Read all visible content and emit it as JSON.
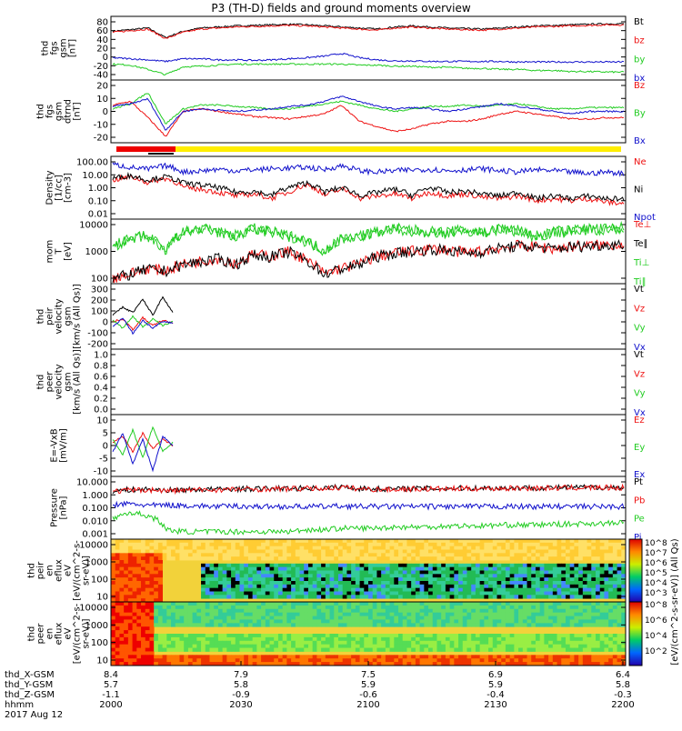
{
  "title": "P3 (TH-D) fields and ground moments overview",
  "colors": {
    "black": "#000000",
    "red": "#ee1111",
    "green": "#22cc22",
    "blue": "#1111cc",
    "yellow": "#ffee00",
    "bar_red": "#ee0000",
    "spec_bg": "#f2d23a"
  },
  "chart_data": [
    {
      "id": "fgs_gsm",
      "type": "line",
      "ylabel": [
        "thd",
        "fgs",
        "gsm",
        "[nT]"
      ],
      "yticks": [
        "80",
        "60",
        "40",
        "20",
        "0",
        "-20",
        "-40"
      ],
      "ylim": [
        -40,
        80
      ],
      "series": [
        {
          "name": "Bt",
          "color": "black",
          "values": [
            52,
            55,
            58,
            40,
            52,
            58,
            60,
            62,
            63,
            64,
            65,
            64,
            62,
            60,
            58,
            56,
            60,
            62,
            60,
            58,
            57,
            56,
            58,
            60,
            62,
            63,
            64,
            65,
            66,
            66
          ]
        },
        {
          "name": "bz",
          "color": "red",
          "values": [
            50,
            53,
            56,
            38,
            50,
            56,
            58,
            60,
            61,
            62,
            63,
            62,
            60,
            58,
            56,
            54,
            58,
            60,
            58,
            56,
            55,
            54,
            56,
            58,
            60,
            61,
            62,
            63,
            64,
            64
          ]
        },
        {
          "name": "by",
          "color": "green",
          "values": [
            -10,
            -12,
            -20,
            -30,
            -15,
            -14,
            -12,
            -10,
            -10,
            -10,
            -10,
            -10,
            -10,
            -10,
            -12,
            -12,
            -14,
            -14,
            -16,
            -16,
            -18,
            -18,
            -20,
            -20,
            -22,
            -22,
            -24,
            -24,
            -25,
            -25
          ]
        },
        {
          "name": "bx",
          "color": "blue",
          "values": [
            2,
            0,
            -2,
            -5,
            0,
            0,
            -2,
            -2,
            -3,
            -2,
            0,
            2,
            5,
            10,
            2,
            -2,
            -4,
            -4,
            -5,
            -5,
            -5,
            -5,
            -5,
            -6,
            -6,
            -6,
            -6,
            -6,
            -6,
            -6
          ]
        }
      ]
    },
    {
      "id": "fgs_gse_detrend",
      "type": "line",
      "ylabel": [
        "thd",
        "fgs",
        "gsm",
        "dtrnd",
        "[nT]"
      ],
      "yticks": [
        "20",
        "10",
        "0",
        "-10",
        "-20"
      ],
      "ylim": [
        -25,
        25
      ],
      "series": [
        {
          "name": "Bz",
          "color": "red",
          "values": [
            5,
            8,
            -5,
            -20,
            0,
            2,
            0,
            -2,
            -4,
            -5,
            -6,
            -4,
            -2,
            5,
            -8,
            -12,
            -16,
            -14,
            -10,
            -8,
            -8,
            -6,
            -2,
            0,
            -2,
            -4,
            -6,
            -6,
            -5,
            -5
          ]
        },
        {
          "name": "By",
          "color": "green",
          "values": [
            2,
            6,
            15,
            -10,
            2,
            5,
            5,
            4,
            3,
            2,
            2,
            4,
            6,
            8,
            5,
            2,
            0,
            2,
            4,
            4,
            5,
            4,
            5,
            6,
            4,
            2,
            2,
            3,
            3,
            3
          ]
        },
        {
          "name": "Bx",
          "color": "blue",
          "values": [
            4,
            6,
            10,
            -15,
            0,
            2,
            1,
            0,
            1,
            2,
            4,
            5,
            8,
            12,
            8,
            4,
            2,
            3,
            2,
            0,
            2,
            4,
            6,
            4,
            2,
            0,
            -2,
            0,
            0,
            0
          ]
        }
      ]
    },
    {
      "id": "density",
      "type": "line",
      "log": true,
      "ylabel": [
        "Density",
        "[1/cc]",
        "[cm-3]"
      ],
      "yticks": [
        "100.00",
        "10.00",
        "1.00",
        "0.10",
        "0.01"
      ],
      "ylim": [
        0.01,
        100
      ],
      "series": [
        {
          "name": "Ne",
          "color": "red",
          "values": [
            3,
            5,
            2,
            4,
            1,
            0.8,
            0.5,
            0.3,
            0.4,
            0.2,
            0.5,
            1.5,
            0.3,
            0.8,
            0.2,
            0.3,
            0.4,
            0.2,
            0.5,
            0.3,
            0.4,
            0.25,
            0.2,
            0.3,
            0.15,
            0.2,
            0.15,
            0.2,
            0.12,
            0.1
          ]
        },
        {
          "name": "Ni",
          "color": "black",
          "values": [
            4,
            6,
            3,
            5,
            2,
            1.5,
            1,
            0.5,
            0.6,
            0.3,
            1,
            2,
            0.5,
            1,
            0.3,
            0.5,
            0.8,
            0.3,
            1,
            0.5,
            0.6,
            0.4,
            0.3,
            0.5,
            0.2,
            0.3,
            0.2,
            0.3,
            0.2,
            0.2
          ]
        },
        {
          "name": "Npot",
          "color": "blue",
          "values": [
            30,
            20,
            15,
            25,
            10,
            12,
            15,
            12,
            14,
            16,
            18,
            20,
            14,
            25,
            12,
            10,
            12,
            14,
            15,
            12,
            14,
            16,
            12,
            10,
            14,
            12,
            10,
            8,
            10,
            8
          ]
        }
      ]
    },
    {
      "id": "moms_temp",
      "type": "line",
      "log": true,
      "ylabel": [
        "mom",
        "T",
        "[eV]"
      ],
      "yticks": [
        "10000",
        "1000",
        "100"
      ],
      "ylim": [
        100,
        10000
      ],
      "series": [
        {
          "name": "Te⊥",
          "color": "red",
          "values": [
            150,
            200,
            300,
            250,
            400,
            500,
            600,
            400,
            800,
            700,
            1000,
            500,
            200,
            300,
            400,
            700,
            900,
            1000,
            1200,
            1100,
            900,
            1000,
            1300,
            1500,
            1400,
            1200,
            1400,
            1500,
            1600,
            1700
          ]
        },
        {
          "name": "Te∥",
          "color": "black",
          "values": [
            140,
            190,
            280,
            240,
            380,
            480,
            580,
            380,
            760,
            680,
            950,
            480,
            190,
            290,
            380,
            680,
            880,
            980,
            1150,
            1080,
            880,
            980,
            1250,
            1450,
            1380,
            1180,
            1380,
            1480,
            1580,
            1680
          ]
        },
        {
          "name": "Ti⊥",
          "color": "green",
          "values": [
            1500,
            2500,
            3000,
            1000,
            4000,
            5000,
            4000,
            3000,
            5000,
            4000,
            3000,
            2000,
            1000,
            2500,
            3000,
            4000,
            5000,
            4500,
            4000,
            4000,
            4500,
            4000,
            5000,
            4500,
            3000,
            4000,
            4500,
            5000,
            5000,
            5500
          ]
        },
        {
          "name": "Ti∥",
          "color": "green",
          "values": [
            1400,
            2300,
            2800,
            900,
            3800,
            4800,
            3800,
            2800,
            4800,
            3800,
            2800,
            1900,
            900,
            2300,
            2800,
            3800,
            4800,
            4300,
            3800,
            3800,
            4300,
            3800,
            4800,
            4300,
            2800,
            3800,
            4300,
            4800,
            4800,
            5300
          ]
        }
      ]
    },
    {
      "id": "peir_velocity",
      "type": "line",
      "ylabel": [
        "thd",
        "peir",
        "velocity",
        "gsm",
        "[km/s (All Qs)]"
      ],
      "yticks": [
        "300",
        "200",
        "100",
        "0",
        "-100",
        "-200"
      ],
      "ylim": [
        -200,
        300
      ],
      "series": [
        {
          "name": "Vt",
          "color": "black",
          "values": [
            60,
            120,
            80,
            180,
            60,
            200,
            80
          ]
        },
        {
          "name": "Vz",
          "color": "red",
          "values": [
            10,
            30,
            -50,
            40,
            -20,
            20,
            0
          ]
        },
        {
          "name": "Vy",
          "color": "green",
          "values": [
            20,
            -40,
            50,
            -30,
            30,
            -20,
            10
          ]
        },
        {
          "name": "Vx",
          "color": "blue",
          "values": [
            -30,
            40,
            -80,
            20,
            -40,
            10,
            0
          ]
        }
      ]
    },
    {
      "id": "peer_velocity",
      "type": "line",
      "ylabel": [
        "thd",
        "peer",
        "velocity",
        "gsm",
        "[km/s (All Qs)]"
      ],
      "yticks": [
        "1.0",
        "0.8",
        "0.6",
        "0.4",
        "0.2",
        "0.0"
      ],
      "ylim": [
        0,
        1
      ],
      "series": [
        {
          "name": "Vt",
          "color": "black",
          "values": []
        },
        {
          "name": "Vz",
          "color": "red",
          "values": []
        },
        {
          "name": "Vy",
          "color": "green",
          "values": []
        },
        {
          "name": "Vx",
          "color": "blue",
          "values": []
        }
      ]
    },
    {
      "id": "efield",
      "type": "line",
      "ylabel": [
        "E=-VxB",
        "[mV/m]"
      ],
      "yticks": [
        "10",
        "5",
        "0",
        "-5",
        "-10"
      ],
      "ylim": [
        -10,
        10
      ],
      "series": [
        {
          "name": "Ez",
          "color": "red",
          "values": [
            1,
            3,
            -2,
            4,
            -1,
            2,
            0
          ]
        },
        {
          "name": "Ey",
          "color": "green",
          "values": [
            2,
            -3,
            5,
            -4,
            6,
            -2,
            1
          ]
        },
        {
          "name": "Ex",
          "color": "blue",
          "values": [
            -2,
            4,
            -6,
            2,
            -8,
            3,
            0
          ]
        }
      ]
    },
    {
      "id": "pressure",
      "type": "line",
      "log": true,
      "ylabel": [
        "Pressure",
        "[nPa]"
      ],
      "yticks": [
        "10.000",
        "1.000",
        "0.100",
        "0.010",
        "0.001"
      ],
      "ylim": [
        0.001,
        10
      ],
      "series": [
        {
          "name": "Pt",
          "color": "black",
          "values": [
            1.2,
            1.4,
            1.5,
            1.3,
            1.4,
            1.5,
            1.5,
            1.6,
            1.6,
            1.7,
            1.7,
            1.8,
            1.8,
            2.2,
            1.7,
            1.6,
            1.6,
            1.7,
            1.7,
            1.7,
            1.8,
            1.8,
            1.8,
            1.9,
            1.9,
            1.9,
            2.0,
            2.0,
            2.0,
            2.0
          ]
        },
        {
          "name": "Pb",
          "color": "red",
          "values": [
            1.1,
            1.3,
            1.4,
            1.2,
            1.3,
            1.4,
            1.4,
            1.5,
            1.5,
            1.6,
            1.6,
            1.7,
            1.7,
            2.0,
            1.6,
            1.5,
            1.5,
            1.6,
            1.6,
            1.6,
            1.7,
            1.7,
            1.7,
            1.8,
            1.8,
            1.8,
            1.9,
            1.9,
            1.9,
            1.9
          ]
        },
        {
          "name": "Pe",
          "color": "green",
          "values": [
            0.02,
            0.05,
            0.03,
            0.004,
            0.003,
            0.003,
            0.003,
            0.003,
            0.003,
            0.003,
            0.003,
            0.004,
            0.004,
            0.005,
            0.005,
            0.005,
            0.006,
            0.006,
            0.006,
            0.007,
            0.007,
            0.007,
            0.008,
            0.008,
            0.008,
            0.009,
            0.009,
            0.01,
            0.01,
            0.011
          ]
        },
        {
          "name": "Pi",
          "color": "blue",
          "values": [
            0.15,
            0.18,
            0.14,
            0.15,
            0.14,
            0.13,
            0.12,
            0.13,
            0.12,
            0.12,
            0.12,
            0.12,
            0.12,
            0.13,
            0.12,
            0.12,
            0.12,
            0.12,
            0.12,
            0.12,
            0.12,
            0.12,
            0.12,
            0.12,
            0.12,
            0.12,
            0.12,
            0.12,
            0.12,
            0.12
          ]
        }
      ]
    },
    {
      "id": "peir_spec",
      "type": "heatmap",
      "ylabel": [
        "thd",
        "peir",
        "en",
        "eflux",
        "eV",
        "[eV/(cm^2-s-",
        "sr-eV)]"
      ],
      "yticks": [
        "10000",
        "1000",
        "100",
        "10"
      ]
    },
    {
      "id": "peer_spec",
      "type": "heatmap",
      "ylabel": [
        "thd",
        "peer",
        "en",
        "eflux",
        "eV",
        "[eV/(cm^2-s-",
        "sr-eV)]"
      ],
      "yticks": [
        "10000",
        "1000",
        "100",
        "10"
      ]
    }
  ],
  "colorbar": {
    "label": "[eV/(cm^2-s-sr-eV)] (All Qs)",
    "ticks_top": [
      "10^8",
      "10^7",
      "10^6",
      "10^5",
      "10^4",
      "10^3"
    ],
    "ticks_bottom": [
      "10^8",
      "10^6",
      "10^4",
      "10^2"
    ]
  },
  "axis_rows": [
    {
      "label": "thd_X-GSM",
      "values": [
        "8.4",
        "7.9",
        "7.5",
        "6.9",
        "6.4"
      ]
    },
    {
      "label": "thd_Y-GSM",
      "values": [
        "5.7",
        "5.8",
        "5.9",
        "5.9",
        "5.8"
      ]
    },
    {
      "label": "thd_Z-GSM",
      "values": [
        "-1.1",
        "-0.9",
        "-0.6",
        "-0.4",
        "-0.3"
      ]
    },
    {
      "label": "hhmm",
      "values": [
        "2000",
        "2030",
        "2100",
        "2130",
        "2200"
      ]
    }
  ],
  "date_label": "2017 Aug 12"
}
